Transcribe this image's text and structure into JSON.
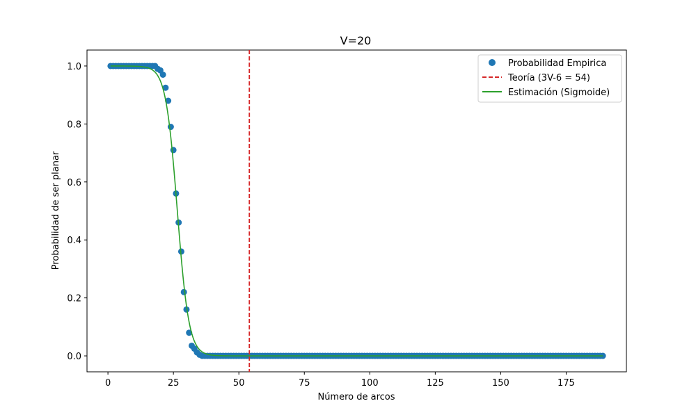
{
  "chart_data": {
    "type": "scatter",
    "title": "V=20",
    "xlabel": "Número de arcos",
    "ylabel": "Probabilidad de ser planar",
    "xlim": [
      -8,
      198
    ],
    "ylim": [
      -0.055,
      1.055
    ],
    "xticks": [
      0,
      25,
      50,
      75,
      100,
      125,
      150,
      175
    ],
    "yticks": [
      0.0,
      0.2,
      0.4,
      0.6,
      0.8,
      1.0
    ],
    "xtick_labels": [
      "0",
      "25",
      "50",
      "75",
      "100",
      "125",
      "150",
      "175"
    ],
    "ytick_labels": [
      "0.0",
      "0.2",
      "0.4",
      "0.6",
      "0.8",
      "1.0"
    ],
    "grid": false,
    "legend_position": "top-right",
    "series": [
      {
        "name": "Probabilidad Empirica",
        "kind": "scatter",
        "color": "#1f77b4",
        "x_range": [
          1,
          189
        ],
        "points": [
          [
            1,
            1.0
          ],
          [
            2,
            1.0
          ],
          [
            3,
            1.0
          ],
          [
            4,
            1.0
          ],
          [
            5,
            1.0
          ],
          [
            6,
            1.0
          ],
          [
            7,
            1.0
          ],
          [
            8,
            1.0
          ],
          [
            9,
            1.0
          ],
          [
            10,
            1.0
          ],
          [
            11,
            1.0
          ],
          [
            12,
            1.0
          ],
          [
            13,
            1.0
          ],
          [
            14,
            1.0
          ],
          [
            15,
            1.0
          ],
          [
            16,
            1.0
          ],
          [
            17,
            1.0
          ],
          [
            18,
            1.0
          ],
          [
            19,
            0.99
          ],
          [
            20,
            0.985
          ],
          [
            21,
            0.97
          ],
          [
            22,
            0.925
          ],
          [
            23,
            0.88
          ],
          [
            24,
            0.79
          ],
          [
            25,
            0.71
          ],
          [
            26,
            0.56
          ],
          [
            27,
            0.46
          ],
          [
            28,
            0.36
          ],
          [
            29,
            0.22
          ],
          [
            30,
            0.16
          ],
          [
            31,
            0.08
          ],
          [
            32,
            0.035
          ],
          [
            33,
            0.025
          ],
          [
            34,
            0.012
          ],
          [
            35,
            0.004
          ],
          [
            36,
            0.0
          ]
        ],
        "tail_value": 0.0
      },
      {
        "name": "Teoría (3V-6 = 54)",
        "kind": "vline",
        "color": "#d62728",
        "x": 54,
        "dashed": true
      },
      {
        "name": "Estimación (Sigmoide)",
        "kind": "line",
        "color": "#2ca02c",
        "function": "sigmoid",
        "x0": 26.5,
        "k": 0.45,
        "x_range": [
          1,
          189
        ]
      }
    ]
  }
}
